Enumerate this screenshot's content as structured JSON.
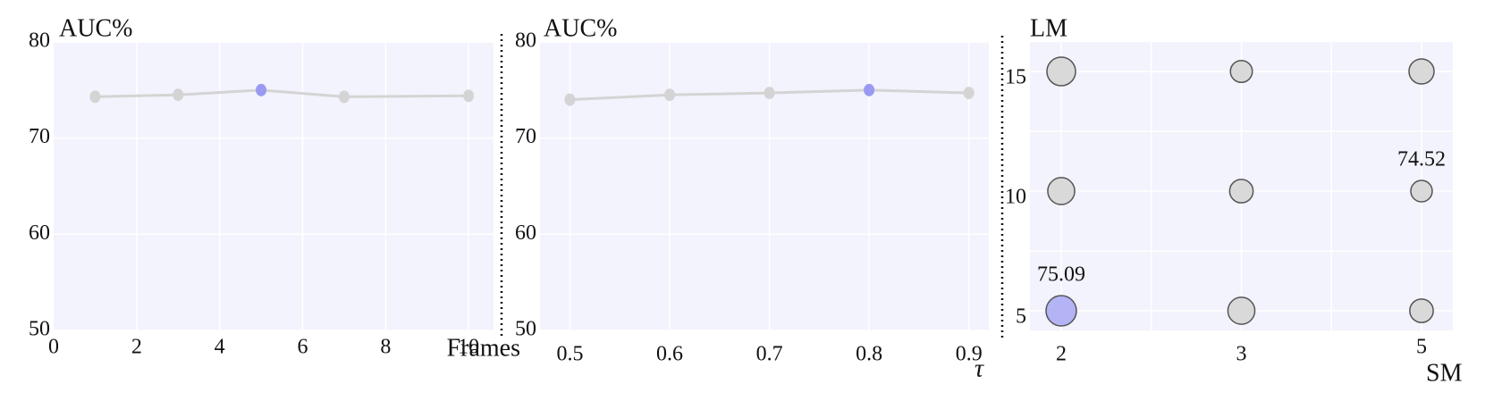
{
  "chart_data": [
    {
      "type": "line",
      "y_label": "AUC%",
      "x_label": "Frames",
      "x": [
        1,
        3,
        5,
        7,
        10
      ],
      "values": [
        74.3,
        74.5,
        75.0,
        74.3,
        74.4
      ],
      "color": "#d4d4d4",
      "point_colors": [
        "#d4d4d4",
        "#d4d4d4",
        "#9a9af2",
        "#d4d4d4",
        "#d4d4d4"
      ],
      "xlim": [
        0,
        10.6
      ],
      "xticks": [
        0,
        2,
        4,
        6,
        8,
        10
      ],
      "ylim": [
        50,
        80
      ],
      "yticks": [
        50,
        60,
        70,
        80
      ],
      "grid": true,
      "background": "#f3f3fd"
    },
    {
      "type": "line",
      "y_label": "AUC%",
      "x_label": "τ",
      "x": [
        0.5,
        0.6,
        0.7,
        0.8,
        0.9
      ],
      "values": [
        74.0,
        74.5,
        74.7,
        75.0,
        74.7
      ],
      "color": "#d4d4d4",
      "point_colors": [
        "#d4d4d4",
        "#d4d4d4",
        "#d4d4d4",
        "#9a9af2",
        "#d4d4d4"
      ],
      "xlim": [
        0.47,
        0.92
      ],
      "xticks": [
        0.5,
        0.6,
        0.7,
        0.8,
        0.9
      ],
      "ylim": [
        50,
        80
      ],
      "yticks": [
        50,
        60,
        70,
        80
      ],
      "grid": true,
      "background": "#f3f3fd"
    },
    {
      "type": "bubble",
      "y_label": "LM",
      "x_label": "SM",
      "x_categories": [
        "2",
        "3",
        "5"
      ],
      "y_categories": [
        "5",
        "10",
        "15"
      ],
      "series": [
        {
          "x": [
            "2",
            "3",
            "5",
            "2",
            "3",
            "5",
            "2",
            "3",
            "5"
          ],
          "y": [
            "15",
            "15",
            "15",
            "10",
            "10",
            "10",
            "5",
            "5",
            "5"
          ],
          "values": [
            74.98,
            74.55,
            74.75,
            74.87,
            74.65,
            74.52,
            75.09,
            74.87,
            74.65
          ],
          "colors": [
            "#d9d9d9",
            "#d9d9d9",
            "#d9d9d9",
            "#d9d9d9",
            "#d9d9d9",
            "#d9d9d9",
            "#b3b3f5",
            "#d9d9d9",
            "#d9d9d9"
          ],
          "value_labels": [
            null,
            null,
            null,
            null,
            null,
            "74.52",
            "75.09",
            null,
            null
          ]
        }
      ],
      "grid": true,
      "background": "#f3f3fd"
    }
  ]
}
